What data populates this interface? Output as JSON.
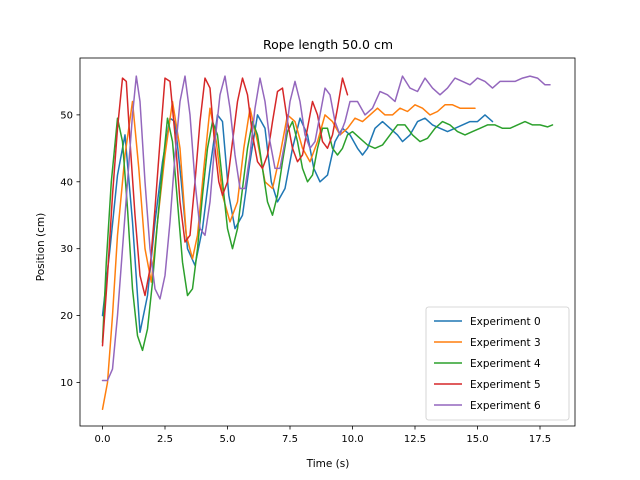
{
  "chart_data": {
    "type": "line",
    "title": "Rope length 50.0 cm",
    "xlabel": "Time (s)",
    "ylabel": "Position (cm)",
    "xlim": [
      -0.9,
      18.9
    ],
    "ylim": [
      3.5,
      58.5
    ],
    "xticks": [
      0.0,
      2.5,
      5.0,
      7.5,
      10.0,
      12.5,
      15.0,
      17.5
    ],
    "xtick_labels": [
      "0.0",
      "2.5",
      "5.0",
      "7.5",
      "10.0",
      "12.5",
      "15.0",
      "17.5"
    ],
    "yticks": [
      10,
      20,
      30,
      40,
      50
    ],
    "ytick_labels": [
      "10",
      "20",
      "30",
      "40",
      "50"
    ],
    "grid": false,
    "legend_position": "lower right",
    "series": [
      {
        "name": "Experiment 0",
        "color": "#1f77b4",
        "x": [
          0.0,
          0.3,
          0.6,
          0.9,
          1.2,
          1.5,
          1.8,
          2.1,
          2.4,
          2.7,
          2.9,
          3.15,
          3.4,
          3.7,
          4.0,
          4.3,
          4.6,
          4.8,
          5.05,
          5.3,
          5.6,
          5.9,
          6.2,
          6.5,
          6.75,
          7.0,
          7.3,
          7.6,
          7.9,
          8.2,
          8.45,
          8.7,
          9.0,
          9.3,
          9.6,
          9.9,
          10.2,
          10.4,
          10.6,
          10.9,
          11.2,
          11.5,
          11.8,
          12.0,
          12.3,
          12.6,
          12.9,
          13.2,
          13.5,
          13.8,
          14.1,
          14.4,
          14.7,
          15.0,
          15.3,
          15.6
        ],
        "y": [
          20,
          30,
          41,
          47,
          34,
          17.5,
          23,
          34,
          43,
          49.5,
          49,
          40,
          30,
          27.5,
          33,
          42,
          50,
          49,
          38,
          33,
          35,
          43,
          50,
          48,
          40,
          37,
          39,
          45,
          49.5,
          47,
          42,
          40,
          41,
          46,
          48,
          47,
          45,
          44,
          45,
          48,
          49,
          48,
          47,
          46,
          47,
          49,
          49.5,
          48.5,
          48,
          47.5,
          48,
          48.5,
          49,
          49,
          50,
          49
        ]
      },
      {
        "name": "Experiment 3",
        "color": "#ff7f0e",
        "x": [
          0.0,
          0.2,
          0.4,
          0.6,
          0.9,
          1.2,
          1.45,
          1.7,
          1.95,
          2.2,
          2.5,
          2.8,
          3.1,
          3.35,
          3.6,
          3.8,
          4.05,
          4.3,
          4.55,
          4.8,
          5.1,
          5.4,
          5.65,
          5.9,
          6.2,
          6.5,
          6.8,
          7.1,
          7.4,
          7.7,
          8.0,
          8.3,
          8.6,
          8.9,
          9.2,
          9.5,
          9.8,
          10.1,
          10.4,
          10.7,
          11.0,
          11.3,
          11.6,
          11.9,
          12.2,
          12.5,
          12.8,
          13.1,
          13.4,
          13.7,
          14.0,
          14.3,
          14.6,
          14.9
        ],
        "y": [
          6,
          10,
          20,
          32,
          44,
          52,
          42,
          30,
          25,
          34,
          44,
          52,
          45,
          32,
          28.5,
          32,
          42,
          51,
          46,
          38,
          34,
          37,
          45,
          51,
          46,
          40,
          39,
          44,
          50,
          49,
          45,
          43,
          46,
          50,
          49,
          47,
          48,
          49.5,
          49,
          50,
          51,
          50,
          50,
          51,
          50.5,
          51.5,
          51,
          50,
          50.5,
          51.5,
          51.5,
          51,
          51,
          51
        ]
      },
      {
        "name": "Experiment 4",
        "color": "#2ca02c",
        "x": [
          0.0,
          0.15,
          0.35,
          0.6,
          0.8,
          1.0,
          1.2,
          1.4,
          1.6,
          1.8,
          2.0,
          2.2,
          2.4,
          2.6,
          2.8,
          3.0,
          3.2,
          3.4,
          3.6,
          3.8,
          4.0,
          4.2,
          4.4,
          4.6,
          4.8,
          5.0,
          5.2,
          5.4,
          5.6,
          5.8,
          6.0,
          6.2,
          6.4,
          6.6,
          6.8,
          7.0,
          7.2,
          7.4,
          7.6,
          7.8,
          8.0,
          8.2,
          8.4,
          8.6,
          8.8,
          9.0,
          9.2,
          9.4,
          9.6,
          9.8,
          10.0,
          10.3,
          10.6,
          10.9,
          11.2,
          11.5,
          11.8,
          12.1,
          12.4,
          12.7,
          13.0,
          13.3,
          13.6,
          13.9,
          14.2,
          14.5,
          14.8,
          15.1,
          15.4,
          15.7,
          16.0,
          16.3,
          16.6,
          16.9,
          17.2,
          17.5,
          17.8,
          18.0
        ],
        "y": [
          16,
          28,
          40,
          49.5,
          46,
          36,
          24,
          17,
          14.8,
          18,
          25,
          34,
          42,
          49.5,
          46,
          37,
          28,
          23,
          24,
          30,
          38,
          45,
          49,
          47,
          40,
          33,
          30,
          33,
          39,
          45,
          49,
          47,
          42,
          37,
          35,
          38,
          43,
          47.5,
          49,
          46,
          42,
          40,
          41,
          45,
          48,
          48,
          45,
          44,
          45,
          47,
          47.5,
          46.5,
          45.5,
          45,
          45.5,
          47,
          48.5,
          48.5,
          47,
          46,
          46.5,
          48,
          49,
          48.5,
          47.5,
          47,
          47.5,
          48,
          48.5,
          48.5,
          48,
          48,
          48.5,
          49,
          48.5,
          48.5,
          48.2,
          48.5
        ]
      },
      {
        "name": "Experiment 5",
        "color": "#d62728",
        "x": [
          0.0,
          0.2,
          0.4,
          0.6,
          0.8,
          0.95,
          1.1,
          1.3,
          1.5,
          1.7,
          1.9,
          2.1,
          2.3,
          2.5,
          2.7,
          2.9,
          3.1,
          3.3,
          3.5,
          3.7,
          3.9,
          4.1,
          4.3,
          4.5,
          4.65,
          4.8,
          5.0,
          5.2,
          5.4,
          5.6,
          5.8,
          6.0,
          6.2,
          6.4,
          6.6,
          6.8,
          7.0,
          7.2,
          7.4,
          7.6,
          7.8,
          8.0,
          8.2,
          8.4,
          8.6,
          8.8,
          9.0,
          9.2,
          9.4,
          9.6,
          9.8
        ],
        "y": [
          15.5,
          26,
          38,
          48,
          55.5,
          55,
          46,
          35,
          26,
          23,
          27,
          36,
          46,
          55.5,
          55,
          47,
          37,
          31,
          32,
          40,
          49,
          55.5,
          54,
          45,
          40,
          38,
          40,
          46,
          52,
          55.5,
          53,
          47,
          43,
          42,
          44,
          49,
          53.5,
          54,
          49,
          45,
          43,
          44,
          48,
          52,
          50,
          46,
          45,
          47,
          51,
          55.5,
          53
        ]
      },
      {
        "name": "Experiment 6",
        "color": "#9467bd",
        "x": [
          0.0,
          0.2,
          0.4,
          0.6,
          0.8,
          1.0,
          1.2,
          1.35,
          1.5,
          1.7,
          1.9,
          2.1,
          2.3,
          2.5,
          2.7,
          2.9,
          3.1,
          3.3,
          3.5,
          3.7,
          3.9,
          4.1,
          4.3,
          4.5,
          4.7,
          4.9,
          5.1,
          5.3,
          5.5,
          5.7,
          5.9,
          6.1,
          6.3,
          6.5,
          6.7,
          6.9,
          7.1,
          7.3,
          7.5,
          7.7,
          7.9,
          8.1,
          8.3,
          8.5,
          8.7,
          8.9,
          9.1,
          9.3,
          9.5,
          9.7,
          9.9,
          10.2,
          10.5,
          10.8,
          11.1,
          11.4,
          11.7,
          12.0,
          12.3,
          12.6,
          12.9,
          13.2,
          13.5,
          13.8,
          14.1,
          14.4,
          14.7,
          15.0,
          15.3,
          15.6,
          15.9,
          16.2,
          16.5,
          16.8,
          17.1,
          17.4,
          17.7,
          17.9
        ],
        "y": [
          10.3,
          10.3,
          12,
          20,
          30,
          40,
          50,
          55.8,
          52,
          40,
          30,
          24,
          22.5,
          26,
          34,
          44,
          52,
          55.8,
          50,
          40,
          33,
          32,
          37,
          46,
          53,
          55.8,
          51,
          44,
          39,
          39,
          44,
          51,
          55.5,
          52,
          46,
          42,
          42,
          46,
          52,
          55,
          52,
          47,
          45,
          46,
          50,
          54,
          53,
          49,
          47,
          49,
          52,
          52,
          50,
          51,
          53.5,
          53,
          52,
          55.8,
          54,
          53.5,
          55.5,
          54,
          53,
          54,
          55.5,
          55,
          54.5,
          55.5,
          55,
          54,
          55,
          55,
          55,
          55.5,
          55.8,
          55.5,
          54.5,
          54.5
        ]
      }
    ]
  }
}
